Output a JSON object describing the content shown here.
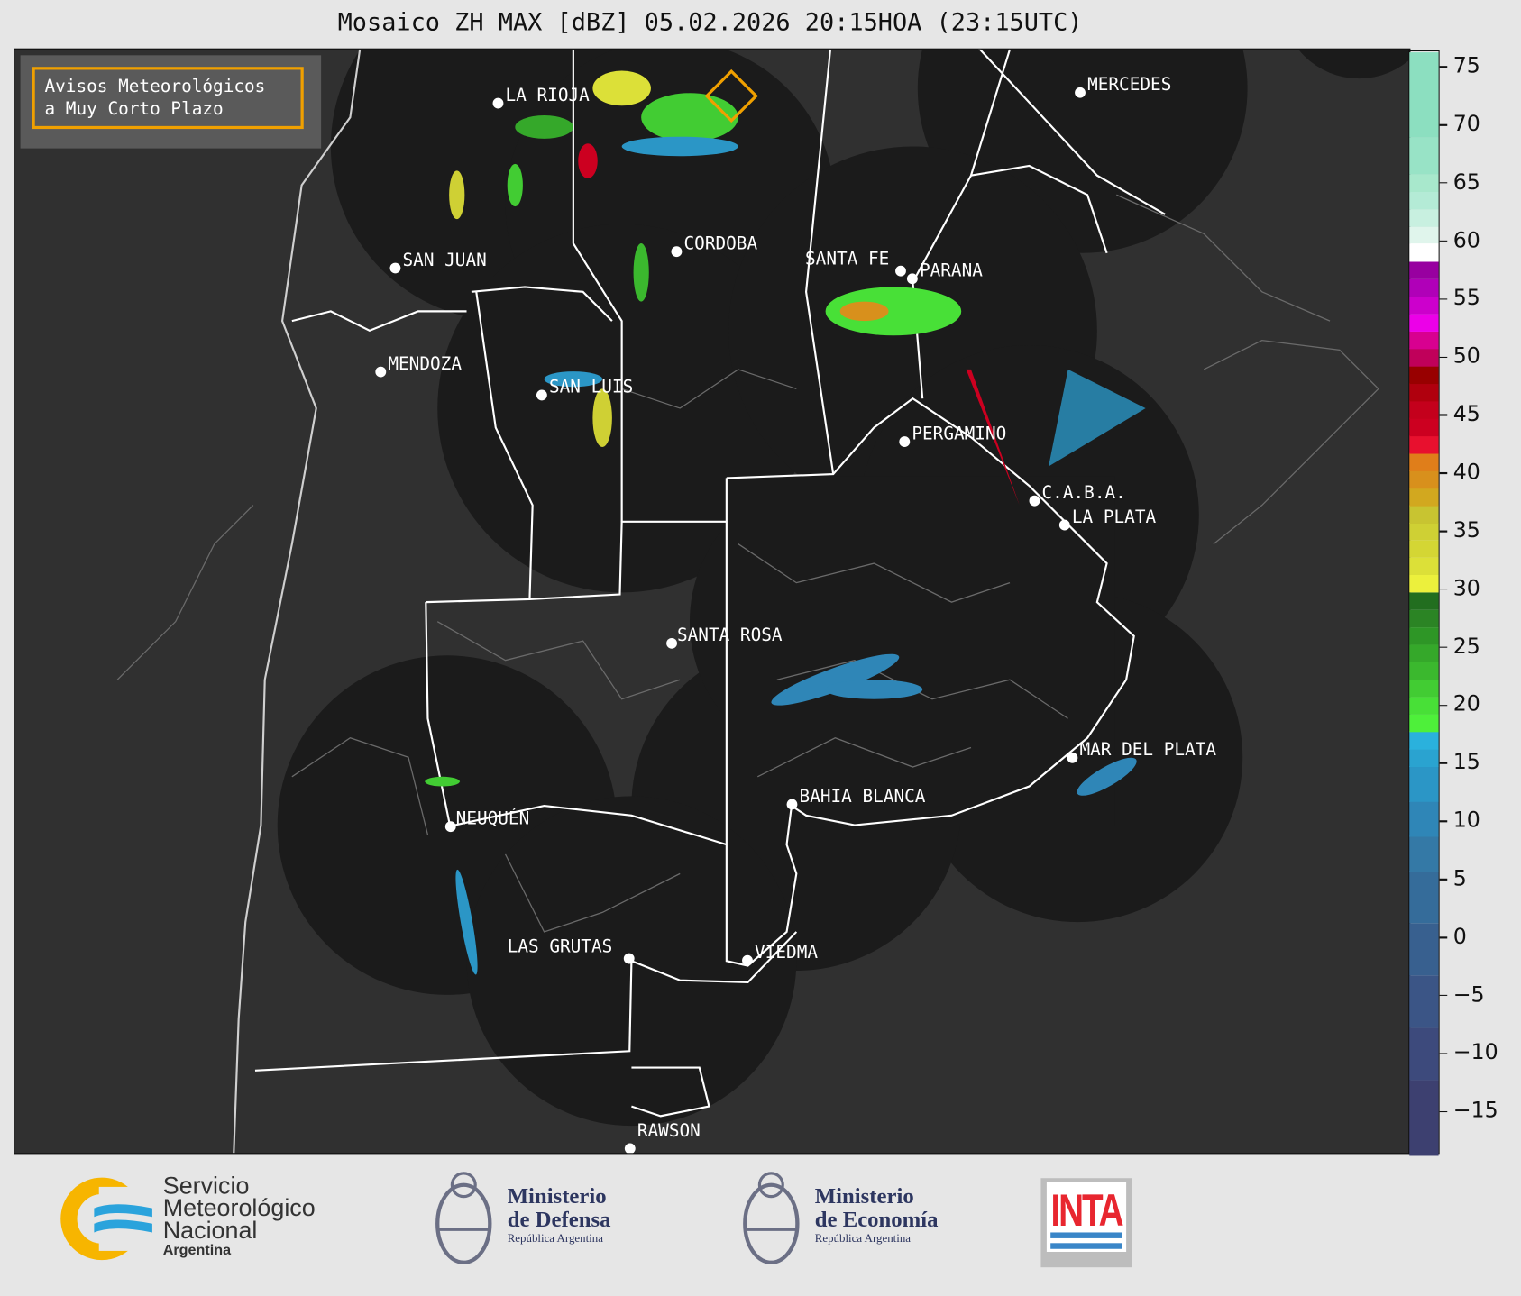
{
  "title": "Mosaico ZH MAX [dBZ] 05.02.2026 20:15HOA (23:15UTC)",
  "legend": {
    "line1": "Avisos Meteorológicos",
    "line2": "a Muy Corto Plazo",
    "border_color": "#f0a000"
  },
  "cities": [
    {
      "name": "LA RIOJA"
    },
    {
      "name": "CORDOBA"
    },
    {
      "name": "SAN JUAN"
    },
    {
      "name": "MENDOZA"
    },
    {
      "name": "SAN LUIS"
    },
    {
      "name": "SANTA FE"
    },
    {
      "name": "PARANA"
    },
    {
      "name": "PERGAMINO"
    },
    {
      "name": "C.A.B.A."
    },
    {
      "name": "LA PLATA"
    },
    {
      "name": "MERCEDES"
    },
    {
      "name": "SANTA ROSA"
    },
    {
      "name": "MAR DEL PLATA"
    },
    {
      "name": "BAHIA BLANCA"
    },
    {
      "name": "NEUQUÉN"
    },
    {
      "name": "LAS GRUTAS"
    },
    {
      "name": "VIEDMA"
    },
    {
      "name": "RAWSON"
    }
  ],
  "colorbar": {
    "unit": "dBZ",
    "ticks": [
      "75",
      "70",
      "65",
      "60",
      "55",
      "50",
      "45",
      "40",
      "35",
      "30",
      "25",
      "20",
      "15",
      "10",
      "5",
      "0",
      "−5",
      "−10",
      "−15"
    ],
    "tick_values": [
      75,
      70,
      65,
      60,
      55,
      50,
      45,
      40,
      35,
      30,
      25,
      20,
      15,
      10,
      5,
      0,
      -5,
      -10,
      -15
    ],
    "bands": [
      {
        "from": -18.6,
        "to": -12.1,
        "color": "#3d4070"
      },
      {
        "from": -12.1,
        "to": -7.6,
        "color": "#3d4a7c"
      },
      {
        "from": -7.6,
        "to": -3.1,
        "color": "#3b5586"
      },
      {
        "from": -3.1,
        "to": 1.4,
        "color": "#38608f"
      },
      {
        "from": 1.4,
        "to": 5.9,
        "color": "#356c9a"
      },
      {
        "from": 5.9,
        "to": 8.9,
        "color": "#3479a6"
      },
      {
        "from": 8.9,
        "to": 11.9,
        "color": "#2f86b7"
      },
      {
        "from": 11.9,
        "to": 14.9,
        "color": "#2b96c6"
      },
      {
        "from": 14.9,
        "to": 16.4,
        "color": "#2aa3d0"
      },
      {
        "from": 16.4,
        "to": 17.9,
        "color": "#2ab1dd"
      },
      {
        "from": 17.9,
        "to": 19.4,
        "color": "#4ef03a"
      },
      {
        "from": 19.4,
        "to": 20.9,
        "color": "#48e037"
      },
      {
        "from": 20.9,
        "to": 22.4,
        "color": "#42cc33"
      },
      {
        "from": 22.4,
        "to": 23.9,
        "color": "#3bb82e"
      },
      {
        "from": 23.9,
        "to": 25.4,
        "color": "#35a82a"
      },
      {
        "from": 25.4,
        "to": 26.9,
        "color": "#2e9626"
      },
      {
        "from": 26.9,
        "to": 28.4,
        "color": "#2b8424"
      },
      {
        "from": 28.4,
        "to": 29.9,
        "color": "#226e1f"
      },
      {
        "from": 29.9,
        "to": 31.4,
        "color": "#ecf03c"
      },
      {
        "from": 31.4,
        "to": 32.9,
        "color": "#dce038"
      },
      {
        "from": 32.9,
        "to": 34.4,
        "color": "#d4d634"
      },
      {
        "from": 34.4,
        "to": 35.9,
        "color": "#cfd034"
      },
      {
        "from": 35.9,
        "to": 37.4,
        "color": "#c8c431"
      },
      {
        "from": 37.4,
        "to": 38.9,
        "color": "#d2a81f"
      },
      {
        "from": 38.9,
        "to": 40.4,
        "color": "#d8901c"
      },
      {
        "from": 40.4,
        "to": 41.9,
        "color": "#e07e1a"
      },
      {
        "from": 41.9,
        "to": 43.4,
        "color": "#e8102e"
      },
      {
        "from": 43.4,
        "to": 44.9,
        "color": "#cc0020"
      },
      {
        "from": 44.9,
        "to": 46.4,
        "color": "#c4001c"
      },
      {
        "from": 46.4,
        "to": 47.9,
        "color": "#b0000e"
      },
      {
        "from": 47.9,
        "to": 49.4,
        "color": "#980000"
      },
      {
        "from": 49.4,
        "to": 50.9,
        "color": "#c0005a"
      },
      {
        "from": 50.9,
        "to": 52.4,
        "color": "#d80090"
      },
      {
        "from": 52.4,
        "to": 53.9,
        "color": "#ec00e8"
      },
      {
        "from": 53.9,
        "to": 55.4,
        "color": "#cc00cc"
      },
      {
        "from": 55.4,
        "to": 56.9,
        "color": "#b000b8"
      },
      {
        "from": 56.9,
        "to": 58.4,
        "color": "#9800a0"
      },
      {
        "from": 58.4,
        "to": 60,
        "color": "#ffffff"
      },
      {
        "from": 60,
        "to": 61.4,
        "color": "#e0f5ec"
      },
      {
        "from": 61.4,
        "to": 62.9,
        "color": "#c8f0e0"
      },
      {
        "from": 62.9,
        "to": 64.4,
        "color": "#b4ebd6"
      },
      {
        "from": 64.4,
        "to": 65.9,
        "color": "#a8e8cc"
      },
      {
        "from": 65.9,
        "to": 69.1,
        "color": "#98e3c6"
      },
      {
        "from": 69.1,
        "to": 76.4,
        "color": "#8cdfc0"
      }
    ]
  },
  "footer": {
    "smn": {
      "line1": "Servicio",
      "line2": "Meteorológico",
      "line3": "Nacional",
      "line4": "Argentina"
    },
    "defensa": {
      "line1": "Ministerio",
      "line2": "de Defensa",
      "line3": "República Argentina"
    },
    "economia": {
      "line1": "Ministerio",
      "line2": "de Economía",
      "line3": "República Argentina"
    },
    "inta": {
      "text": "INTA"
    }
  },
  "colors": {
    "map_background": "#303030",
    "radar_coverage": "#1b1b1b",
    "borders": "#ffffff",
    "smn_orange": "#f7b500",
    "smn_blue": "#2aa3dc",
    "ministry_navy": "#2d3660",
    "inta_red": "#e8262f"
  }
}
